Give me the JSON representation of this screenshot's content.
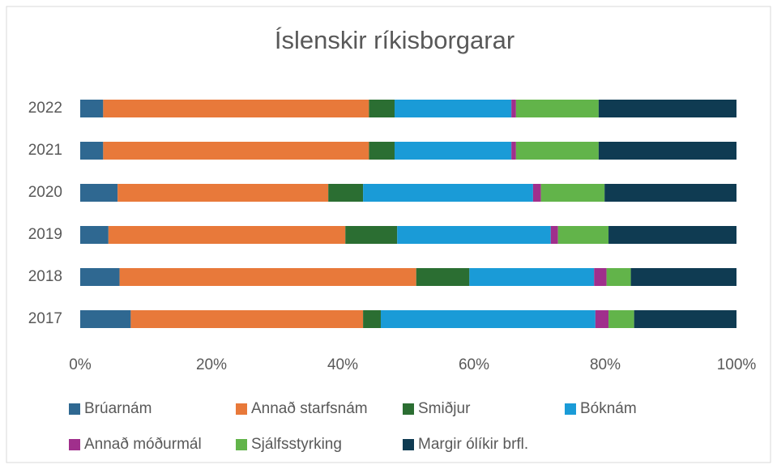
{
  "chart_data": {
    "type": "stacked_bar_horizontal",
    "title": "Íslenskir ríkisborgarar",
    "categories": [
      "2022",
      "2021",
      "2020",
      "2019",
      "2018",
      "2017"
    ],
    "series": [
      {
        "name": "Brúarnám",
        "color": "#2f6891",
        "values": [
          3.5,
          3.5,
          5.7,
          4.3,
          6.0,
          7.7
        ]
      },
      {
        "name": "Annað starfsnám",
        "color": "#e8793a",
        "values": [
          40.5,
          40.5,
          32.1,
          36.1,
          45.2,
          35.4
        ]
      },
      {
        "name": "Smiðjur",
        "color": "#2b6e32",
        "values": [
          3.9,
          3.9,
          5.3,
          7.9,
          8.1,
          2.7
        ]
      },
      {
        "name": "Bóknám",
        "color": "#1a9bd7",
        "values": [
          17.8,
          17.8,
          25.9,
          23.4,
          19.0,
          32.7
        ]
      },
      {
        "name": "Annað móðurmál",
        "color": "#a02f8c",
        "values": [
          0.7,
          0.7,
          1.2,
          1.1,
          1.9,
          2.0
        ]
      },
      {
        "name": "Sjálfsstyrking",
        "color": "#62b44a",
        "values": [
          12.6,
          12.6,
          9.7,
          7.7,
          3.7,
          3.9
        ]
      },
      {
        "name": "Margir ólíkir brfl.",
        "color": "#0f3b52",
        "values": [
          21.0,
          21.0,
          20.1,
          19.5,
          16.1,
          15.6
        ]
      }
    ],
    "xlim": [
      0,
      100
    ],
    "xticks": [
      {
        "value": 0,
        "label": "0%"
      },
      {
        "value": 20,
        "label": "20%"
      },
      {
        "value": 40,
        "label": "40%"
      },
      {
        "value": 60,
        "label": "60%"
      },
      {
        "value": 80,
        "label": "80%"
      },
      {
        "value": 100,
        "label": "100%"
      }
    ],
    "legend": "bottom"
  }
}
